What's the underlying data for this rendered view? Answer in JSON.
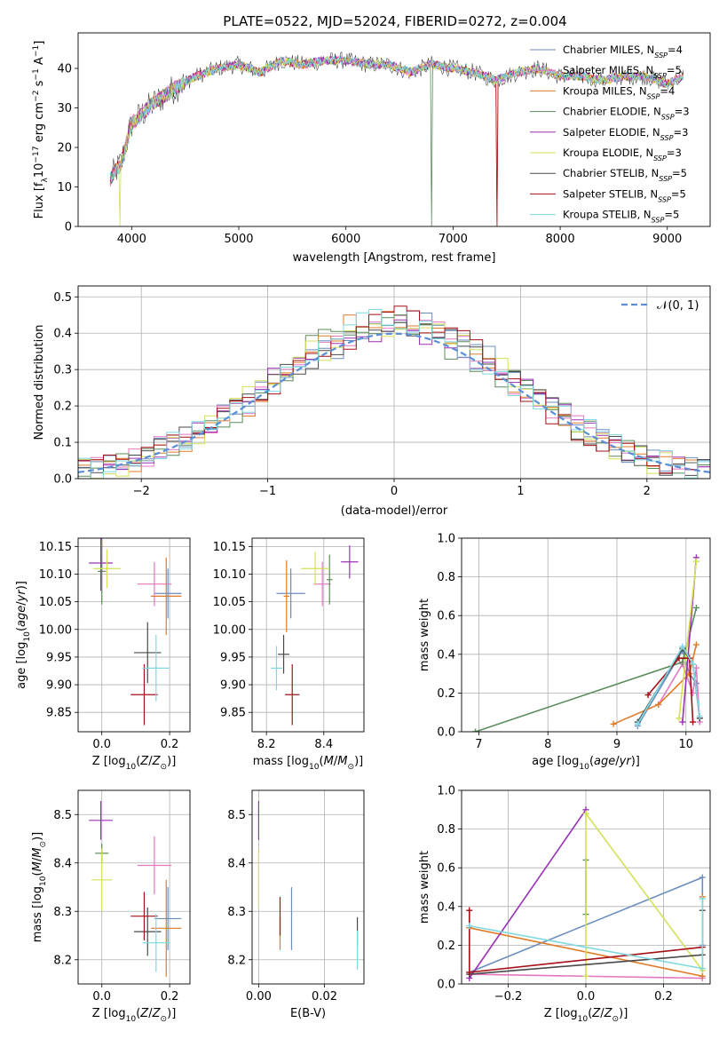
{
  "figure": {
    "title": "PLATE=0522, MJD=52024, FIBERID=0272, z=0.004"
  },
  "colors": {
    "Chabrier MILES": "#6c8ebf",
    "Salpeter MILES": "#e377c2",
    "Kroupa MILES": "#e07b2a",
    "Chabrier ELODIE": "#5b8c5a",
    "Salpeter ELODIE": "#9b30b6",
    "Kroupa ELODIE": "#d4e157",
    "Chabrier STELIB": "#4a4a4a",
    "Salpeter STELIB": "#a50f15",
    "Kroupa STELIB": "#7fd8df"
  },
  "chart_data": [
    {
      "id": "spectrum",
      "type": "line",
      "xlabel": "wavelength [Angstrom, rest frame]",
      "ylabel": "Flux [f_λ 10^-17 erg cm^-2 s^-1 A^-1]",
      "xlim": [
        3500,
        9400
      ],
      "ylim": [
        0,
        49
      ],
      "xticks": [
        4000,
        5000,
        6000,
        7000,
        8000,
        9000
      ],
      "yticks": [
        0,
        10,
        20,
        30,
        40
      ],
      "legend": "top-right",
      "legend_entries": [
        {
          "name": "Chabrier MILES",
          "nssp": "4"
        },
        {
          "name": "Salpeter MILES",
          "nssp": "5"
        },
        {
          "name": "Kroupa MILES",
          "nssp": "4"
        },
        {
          "name": "Chabrier ELODIE",
          "nssp": "3"
        },
        {
          "name": "Salpeter ELODIE",
          "nssp": "3"
        },
        {
          "name": "Kroupa ELODIE",
          "nssp": "3"
        },
        {
          "name": "Chabrier STELIB",
          "nssp": "5"
        },
        {
          "name": "Salpeter STELIB",
          "nssp": "5"
        },
        {
          "name": "Kroupa STELIB",
          "nssp": "5"
        }
      ],
      "continuum": [
        [
          3800,
          12
        ],
        [
          3900,
          16
        ],
        [
          4000,
          26
        ],
        [
          4200,
          31
        ],
        [
          4400,
          35
        ],
        [
          4600,
          38
        ],
        [
          4800,
          40
        ],
        [
          5000,
          41
        ],
        [
          5200,
          39
        ],
        [
          5400,
          42
        ],
        [
          5600,
          41
        ],
        [
          5800,
          42
        ],
        [
          6000,
          42
        ],
        [
          6200,
          41
        ],
        [
          6400,
          41
        ],
        [
          6600,
          39
        ],
        [
          6800,
          41
        ],
        [
          7000,
          40
        ],
        [
          7200,
          39
        ],
        [
          7400,
          37
        ],
        [
          7600,
          39
        ],
        [
          7800,
          40
        ],
        [
          8000,
          38
        ],
        [
          8200,
          38
        ],
        [
          8400,
          37
        ],
        [
          8600,
          38
        ],
        [
          8800,
          38
        ],
        [
          9000,
          36
        ],
        [
          9150,
          38
        ]
      ],
      "dips": [
        [
          3890,
          0
        ],
        [
          6800,
          0
        ],
        [
          7410,
          0
        ]
      ]
    },
    {
      "id": "residuals",
      "type": "histogram",
      "xlabel": "(data-model)/error",
      "ylabel": "Normed distribution",
      "xlim": [
        -2.5,
        2.5
      ],
      "ylim": [
        0,
        0.53
      ],
      "xticks": [
        -2,
        -1,
        0,
        1,
        2
      ],
      "yticks": [
        0,
        0.1,
        0.2,
        0.3,
        0.4,
        0.5
      ],
      "grid": true,
      "legend": "top-right",
      "reference": {
        "label": "𝒩(0, 1)",
        "mean": 0,
        "sigma": 1
      }
    },
    {
      "id": "z-age",
      "type": "errorbar",
      "xlabel": "Z [log10(Z/Z⊙)]",
      "ylabel": "age [log10(age/yr)]",
      "xlim": [
        -0.07,
        0.26
      ],
      "ylim": [
        9.815,
        10.165
      ],
      "xticks": [
        0.0,
        0.2
      ],
      "yticks": [
        9.85,
        9.9,
        9.95,
        10.0,
        10.05,
        10.1,
        10.15
      ],
      "grid": true,
      "points": [
        {
          "series": "Chabrier MILES",
          "x": 0.195,
          "xerr": 0.04,
          "y": 10.065,
          "yerr": 0.045
        },
        {
          "series": "Salpeter MILES",
          "x": 0.155,
          "xerr": 0.05,
          "y": 10.082,
          "yerr": 0.04
        },
        {
          "series": "Kroupa MILES",
          "x": 0.19,
          "xerr": 0.045,
          "y": 10.06,
          "yerr": 0.07
        },
        {
          "series": "Chabrier ELODIE",
          "x": 0.0,
          "xerr": 0.012,
          "y": 10.105,
          "yerr": 0.06
        },
        {
          "series": "Salpeter ELODIE",
          "x": -0.003,
          "xerr": 0.035,
          "y": 10.12,
          "yerr": 0.05
        },
        {
          "series": "Kroupa ELODIE",
          "x": 0.015,
          "xerr": 0.04,
          "y": 10.11,
          "yerr": 0.035
        },
        {
          "series": "Chabrier STELIB",
          "x": 0.135,
          "xerr": 0.04,
          "y": 9.958,
          "yerr": 0.055
        },
        {
          "series": "Salpeter STELIB",
          "x": 0.125,
          "xerr": 0.04,
          "y": 9.882,
          "yerr": 0.055
        },
        {
          "series": "Kroupa STELIB",
          "x": 0.16,
          "xerr": 0.04,
          "y": 9.93,
          "yerr": 0.06
        }
      ]
    },
    {
      "id": "mass-age",
      "type": "errorbar",
      "xlabel": "mass [log10(M/M⊙)]",
      "ylabel": "",
      "xlim": [
        8.15,
        8.54
      ],
      "ylim": [
        9.815,
        10.165
      ],
      "xticks": [
        8.2,
        8.4
      ],
      "yticks": [
        9.85,
        9.9,
        9.95,
        10.0,
        10.05,
        10.1,
        10.15
      ],
      "grid": true,
      "points": [
        {
          "series": "Chabrier MILES",
          "x": 8.285,
          "xerr": 0.05,
          "y": 10.065,
          "yerr": 0.045
        },
        {
          "series": "Salpeter MILES",
          "x": 8.395,
          "xerr": 0.03,
          "y": 10.082,
          "yerr": 0.04
        },
        {
          "series": "Kroupa MILES",
          "x": 8.27,
          "xerr": 0.01,
          "y": 10.06,
          "yerr": 0.065
        },
        {
          "series": "Chabrier ELODIE",
          "x": 8.42,
          "xerr": 0.01,
          "y": 10.09,
          "yerr": 0.045
        },
        {
          "series": "Salpeter ELODIE",
          "x": 8.49,
          "xerr": 0.03,
          "y": 10.122,
          "yerr": 0.03
        },
        {
          "series": "Kroupa ELODIE",
          "x": 8.37,
          "xerr": 0.05,
          "y": 10.11,
          "yerr": 0.03
        },
        {
          "series": "Chabrier STELIB",
          "x": 8.26,
          "xerr": 0.02,
          "y": 9.955,
          "yerr": 0.035
        },
        {
          "series": "Salpeter STELIB",
          "x": 8.29,
          "xerr": 0.025,
          "y": 9.882,
          "yerr": 0.055
        },
        {
          "series": "Kroupa STELIB",
          "x": 8.235,
          "xerr": 0.02,
          "y": 9.93,
          "yerr": 0.04
        }
      ]
    },
    {
      "id": "age-weight",
      "type": "line",
      "xlabel": "age [log10(age/yr)]",
      "ylabel": "mass weight",
      "xlim": [
        6.75,
        10.35
      ],
      "ylim": [
        0,
        1.0
      ],
      "xticks": [
        7,
        8,
        9,
        10
      ],
      "yticks": [
        0.0,
        0.2,
        0.4,
        0.6,
        0.8,
        1.0
      ],
      "grid": true,
      "series": [
        {
          "name": "Chabrier MILES",
          "points": [
            [
              9.3,
              0.03
            ],
            [
              9.95,
              0.42
            ],
            [
              10.05,
              0.3
            ],
            [
              10.15,
              0.25
            ]
          ]
        },
        {
          "name": "Salpeter MILES",
          "points": [
            [
              9.6,
              0.14
            ],
            [
              9.95,
              0.35
            ],
            [
              10.1,
              0.2
            ],
            [
              10.15,
              0.33
            ],
            [
              10.2,
              0.05
            ]
          ]
        },
        {
          "name": "Kroupa MILES",
          "points": [
            [
              8.95,
              0.04
            ],
            [
              9.6,
              0.14
            ],
            [
              10.05,
              0.3
            ],
            [
              10.15,
              0.45
            ]
          ]
        },
        {
          "name": "Chabrier ELODIE",
          "points": [
            [
              6.95,
              0.0
            ],
            [
              9.95,
              0.36
            ],
            [
              10.15,
              0.64
            ]
          ]
        },
        {
          "name": "Salpeter ELODIE",
          "points": [
            [
              9.95,
              0.05
            ],
            [
              10.15,
              0.9
            ]
          ]
        },
        {
          "name": "Kroupa ELODIE",
          "points": [
            [
              9.9,
              0.07
            ],
            [
              10.15,
              0.88
            ]
          ]
        },
        {
          "name": "Chabrier STELIB",
          "points": [
            [
              9.3,
              0.05
            ],
            [
              9.95,
              0.43
            ],
            [
              10.1,
              0.35
            ],
            [
              10.2,
              0.07
            ]
          ]
        },
        {
          "name": "Salpeter STELIB",
          "points": [
            [
              9.45,
              0.19
            ],
            [
              9.9,
              0.38
            ],
            [
              10.05,
              0.38
            ],
            [
              10.1,
              0.05
            ]
          ]
        },
        {
          "name": "Kroupa STELIB",
          "points": [
            [
              9.3,
              0.04
            ],
            [
              9.95,
              0.44
            ],
            [
              10.1,
              0.35
            ],
            [
              10.2,
              0.08
            ]
          ]
        }
      ]
    },
    {
      "id": "z-mass",
      "type": "errorbar",
      "xlabel": "Z [log10(Z/Z⊙)]",
      "ylabel": "mass [log10(M/M⊙)]",
      "xlim": [
        -0.07,
        0.26
      ],
      "ylim": [
        8.15,
        8.55
      ],
      "xticks": [
        0.0,
        0.2
      ],
      "yticks": [
        8.2,
        8.3,
        8.4,
        8.5
      ],
      "grid": true,
      "points": [
        {
          "series": "Chabrier MILES",
          "x": 0.195,
          "xerr": 0.04,
          "y": 8.285,
          "yerr": 0.065
        },
        {
          "series": "Salpeter MILES",
          "x": 0.155,
          "xerr": 0.05,
          "y": 8.395,
          "yerr": 0.06
        },
        {
          "series": "Kroupa MILES",
          "x": 0.19,
          "xerr": 0.045,
          "y": 8.265,
          "yerr": 0.1
        },
        {
          "series": "Chabrier ELODIE",
          "x": 0.0,
          "xerr": 0.02,
          "y": 8.42,
          "yerr": 0.02
        },
        {
          "series": "Salpeter ELODIE",
          "x": -0.003,
          "xerr": 0.035,
          "y": 8.488,
          "yerr": 0.04
        },
        {
          "series": "Kroupa ELODIE",
          "x": 0.0,
          "xerr": 0.03,
          "y": 8.365,
          "yerr": 0.065
        },
        {
          "series": "Chabrier STELIB",
          "x": 0.135,
          "xerr": 0.04,
          "y": 8.258,
          "yerr": 0.05
        },
        {
          "series": "Salpeter STELIB",
          "x": 0.125,
          "xerr": 0.04,
          "y": 8.29,
          "yerr": 0.05
        },
        {
          "series": "Kroupa STELIB",
          "x": 0.16,
          "xerr": 0.04,
          "y": 8.235,
          "yerr": 0.06
        }
      ]
    },
    {
      "id": "ebv-mass",
      "type": "errorbar",
      "xlabel": "E(B-V)",
      "ylabel": "",
      "xlim": [
        -0.002,
        0.032
      ],
      "ylim": [
        8.15,
        8.55
      ],
      "xticks": [
        0.0,
        0.02
      ],
      "yticks": [
        8.2,
        8.3,
        8.4,
        8.5
      ],
      "grid": true,
      "points": [
        {
          "series": "Chabrier MILES",
          "x": 0.01,
          "y": 8.285,
          "yerr": 0.065
        },
        {
          "series": "Kroupa MILES",
          "x": 0.0065,
          "y": 8.255,
          "yerr": 0.035
        },
        {
          "series": "Salpeter STELIB",
          "x": 0.0065,
          "y": 8.29,
          "yerr": 0.04
        },
        {
          "series": "Salpeter ELODIE",
          "x": 0.0,
          "y": 8.488,
          "yerr": 0.04
        },
        {
          "series": "Kroupa ELODIE",
          "x": 0.0,
          "y": 8.365,
          "yerr": 0.06
        },
        {
          "series": "Chabrier STELIB",
          "x": 0.03,
          "y": 8.258,
          "yerr": 0.03
        },
        {
          "series": "Kroupa STELIB",
          "x": 0.03,
          "y": 8.22,
          "yerr": 0.04
        }
      ]
    },
    {
      "id": "z-weight",
      "type": "line",
      "xlabel": "Z [log10(Z/Z⊙)]",
      "ylabel": "mass weight",
      "xlim": [
        -0.32,
        0.32
      ],
      "ylim": [
        0,
        1.0
      ],
      "xticks": [
        -0.2,
        0.0,
        0.2
      ],
      "yticks": [
        0.0,
        0.2,
        0.4,
        0.6,
        0.8,
        1.0
      ],
      "grid": true,
      "series": [
        {
          "name": "Chabrier MILES",
          "points": [
            [
              -0.3,
              0.06
            ],
            [
              0.3,
              0.55
            ],
            [
              0.3,
              0.2
            ]
          ]
        },
        {
          "name": "Salpeter MILES",
          "points": [
            [
              -0.3,
              0.05
            ],
            [
              0.3,
              0.03
            ],
            [
              0.3,
              0.15
            ]
          ]
        },
        {
          "name": "Kroupa MILES",
          "points": [
            [
              -0.3,
              0.29
            ],
            [
              0.3,
              0.04
            ],
            [
              0.3,
              0.45
            ]
          ]
        },
        {
          "name": "Chabrier ELODIE",
          "points": [
            [
              0.0,
              0.36
            ],
            [
              0.0,
              0.64
            ]
          ]
        },
        {
          "name": "Salpeter ELODIE",
          "points": [
            [
              -0.3,
              0.03
            ],
            [
              0.0,
              0.9
            ]
          ]
        },
        {
          "name": "Kroupa ELODIE",
          "points": [
            [
              0.0,
              0.04
            ],
            [
              0.0,
              0.88
            ],
            [
              0.3,
              0.07
            ]
          ]
        },
        {
          "name": "Chabrier STELIB",
          "points": [
            [
              -0.3,
              0.05
            ],
            [
              0.3,
              0.15
            ],
            [
              0.3,
              0.38
            ]
          ]
        },
        {
          "name": "Salpeter STELIB",
          "points": [
            [
              -0.3,
              0.38
            ],
            [
              -0.3,
              0.06
            ],
            [
              0.3,
              0.19
            ]
          ]
        },
        {
          "name": "Kroupa STELIB",
          "points": [
            [
              -0.3,
              0.3
            ],
            [
              0.3,
              0.08
            ],
            [
              0.3,
              0.44
            ]
          ]
        }
      ]
    }
  ]
}
